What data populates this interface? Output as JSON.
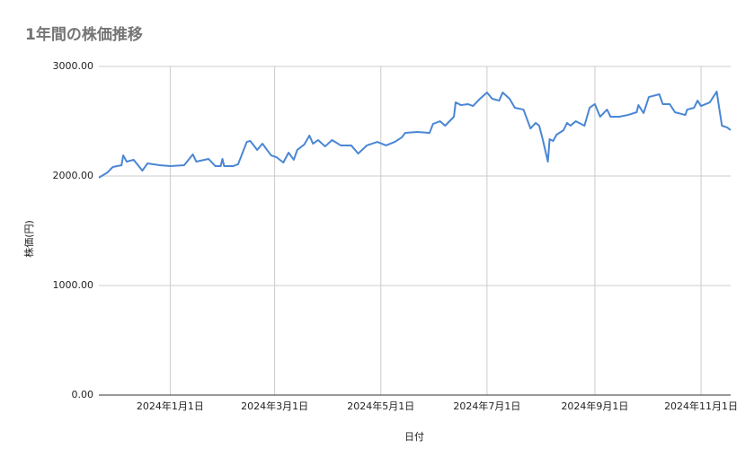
{
  "chart_data": {
    "type": "line",
    "title": "1年間の株価推移",
    "x_label": "日付",
    "y_label": "株価(円)",
    "x": [
      "2023-11-21",
      "2023-11-26",
      "2023-11-29",
      "2023-12-04",
      "2023-12-05",
      "2023-12-07",
      "2023-12-11",
      "2023-12-16",
      "2023-12-19",
      "2023-12-26",
      "2024-01-01",
      "2024-01-09",
      "2024-01-14",
      "2024-01-16",
      "2024-01-23",
      "2024-01-27",
      "2024-01-30",
      "2024-01-31",
      "2024-02-01",
      "2024-02-06",
      "2024-02-09",
      "2024-02-14",
      "2024-02-16",
      "2024-02-20",
      "2024-02-23",
      "2024-02-26",
      "2024-02-28",
      "2024-03-02",
      "2024-03-06",
      "2024-03-09",
      "2024-03-12",
      "2024-03-14",
      "2024-03-18",
      "2024-03-21",
      "2024-03-23",
      "2024-03-26",
      "2024-03-30",
      "2024-04-03",
      "2024-04-08",
      "2024-04-14",
      "2024-04-18",
      "2024-04-23",
      "2024-04-29",
      "2024-05-04",
      "2024-05-09",
      "2024-05-13",
      "2024-05-15",
      "2024-05-22",
      "2024-05-29",
      "2024-05-31",
      "2024-06-04",
      "2024-06-07",
      "2024-06-12",
      "2024-06-13",
      "2024-06-16",
      "2024-06-20",
      "2024-06-23",
      "2024-06-27",
      "2024-07-01",
      "2024-07-04",
      "2024-07-08",
      "2024-07-10",
      "2024-07-14",
      "2024-07-17",
      "2024-07-22",
      "2024-07-26",
      "2024-07-29",
      "2024-07-31",
      "2024-08-02",
      "2024-08-05",
      "2024-08-06",
      "2024-08-08",
      "2024-08-10",
      "2024-08-14",
      "2024-08-16",
      "2024-08-18",
      "2024-08-21",
      "2024-08-26",
      "2024-08-29",
      "2024-09-01",
      "2024-09-04",
      "2024-09-08",
      "2024-09-10",
      "2024-09-15",
      "2024-09-20",
      "2024-09-25",
      "2024-09-26",
      "2024-09-29",
      "2024-10-02",
      "2024-10-08",
      "2024-10-10",
      "2024-10-14",
      "2024-10-17",
      "2024-10-23",
      "2024-10-24",
      "2024-10-28",
      "2024-10-30",
      "2024-11-01",
      "2024-11-06",
      "2024-11-10",
      "2024-11-11",
      "2024-11-13",
      "2024-11-16",
      "2024-11-18"
    ],
    "series": [
      {
        "name": "株価",
        "color": "#4a86d4",
        "values": [
          1984,
          2033,
          2082,
          2098,
          2188,
          2131,
          2148,
          2049,
          2115,
          2098,
          2090,
          2098,
          2197,
          2131,
          2156,
          2090,
          2090,
          2156,
          2090,
          2090,
          2107,
          2311,
          2320,
          2238,
          2295,
          2230,
          2188,
          2172,
          2123,
          2213,
          2148,
          2238,
          2287,
          2369,
          2295,
          2328,
          2270,
          2328,
          2279,
          2279,
          2205,
          2279,
          2311,
          2279,
          2311,
          2352,
          2393,
          2402,
          2393,
          2475,
          2500,
          2459,
          2541,
          2672,
          2647,
          2656,
          2639,
          2705,
          2762,
          2705,
          2688,
          2762,
          2705,
          2623,
          2606,
          2434,
          2484,
          2459,
          2336,
          2131,
          2336,
          2320,
          2377,
          2418,
          2484,
          2459,
          2500,
          2459,
          2623,
          2656,
          2541,
          2606,
          2541,
          2541,
          2557,
          2582,
          2647,
          2574,
          2721,
          2746,
          2656,
          2656,
          2582,
          2557,
          2606,
          2623,
          2688,
          2639,
          2672,
          2770,
          2664,
          2459,
          2443,
          2418
        ]
      }
    ],
    "xlim": [
      "2023-11-21",
      "2024-11-18"
    ],
    "xticks": [
      {
        "value": "2024-01-01",
        "label": "2024年1月1日"
      },
      {
        "value": "2024-03-01",
        "label": "2024年3月1日"
      },
      {
        "value": "2024-05-01",
        "label": "2024年5月1日"
      },
      {
        "value": "2024-07-01",
        "label": "2024年7月1日"
      },
      {
        "value": "2024-09-01",
        "label": "2024年9月1日"
      },
      {
        "value": "2024-11-01",
        "label": "2024年11月1日"
      }
    ],
    "ylim": [
      0,
      3000
    ],
    "yticks": [
      {
        "value": 0,
        "label": "0.00"
      },
      {
        "value": 1000,
        "label": "1000.00"
      },
      {
        "value": 2000,
        "label": "2000.00"
      },
      {
        "value": 3000,
        "label": "3000.00"
      }
    ],
    "grid": true
  }
}
